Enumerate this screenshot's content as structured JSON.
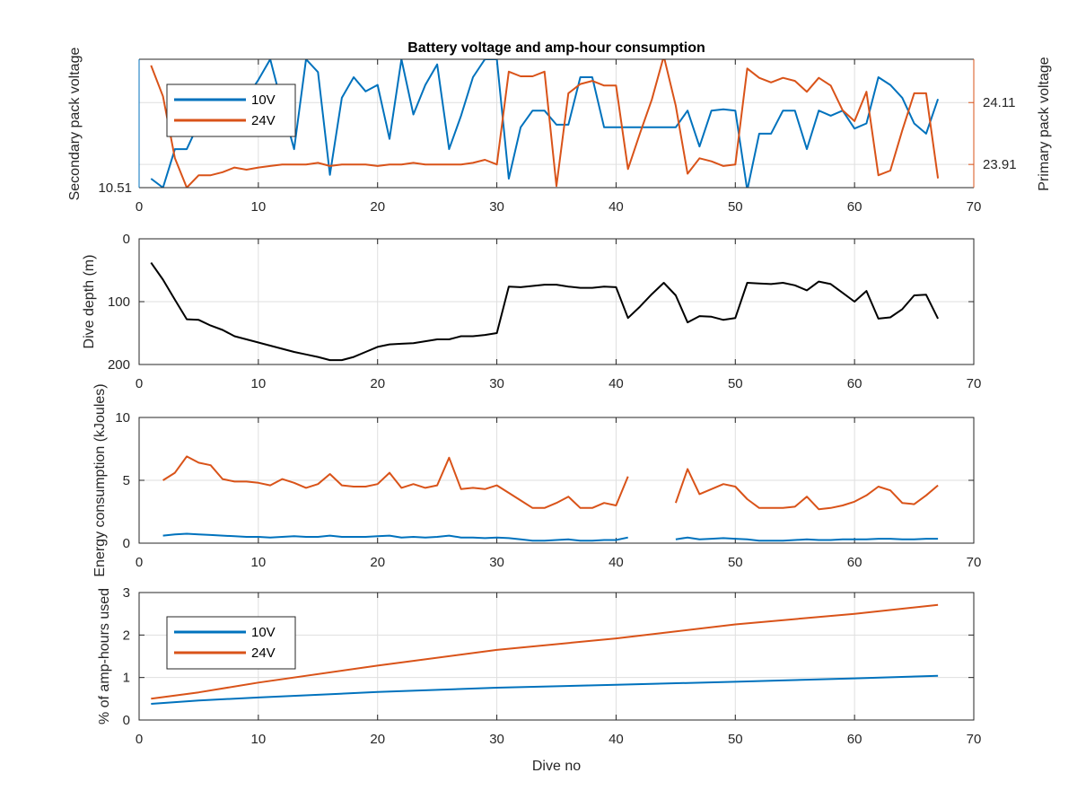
{
  "chart_data": [
    {
      "type": "line",
      "title": "Battery voltage and amp-hour consumption",
      "xlim": [
        0,
        70
      ],
      "xticks": [
        0,
        10,
        20,
        30,
        40,
        50,
        60,
        70
      ],
      "y_left": {
        "label": "Secondary pack voltage",
        "color": "#0072BD",
        "ticks": [
          10.51
        ],
        "tick_labels": [
          "10.51"
        ],
        "lim": [
          10.51,
          10.56
        ]
      },
      "y_right": {
        "label": "Primary pack voltage",
        "color": "#D95319",
        "ticks": [
          23.91,
          24.11
        ],
        "tick_labels": [
          "23.91",
          "24.11"
        ],
        "lim": [
          23.835,
          24.25
        ]
      },
      "legend": {
        "placement": "top-left",
        "entries": [
          "10V",
          "24V"
        ]
      },
      "series": [
        {
          "name": "10V",
          "axis": "left",
          "color": "#0072BD",
          "x": [
            1,
            2,
            3,
            4,
            5,
            6,
            7,
            8,
            9,
            10,
            11,
            12,
            13,
            14,
            15,
            16,
            17,
            18,
            19,
            20,
            21,
            22,
            23,
            24,
            25,
            26,
            27,
            28,
            29,
            30,
            31,
            32,
            33,
            34,
            35,
            36,
            37,
            38,
            39,
            40,
            41,
            42,
            43,
            44,
            45,
            46,
            47,
            48,
            49,
            50,
            51,
            52,
            53,
            54,
            55,
            56,
            57,
            58,
            59,
            60,
            61,
            62,
            63,
            64,
            65,
            66,
            67
          ],
          "y": [
            10.5135,
            10.51,
            10.525,
            10.525,
            10.535,
            10.548,
            10.545,
            10.5425,
            10.545,
            10.552,
            10.56,
            10.542,
            10.525,
            10.56,
            10.555,
            10.515,
            10.545,
            10.553,
            10.5475,
            10.55,
            10.529,
            10.56,
            10.5385,
            10.55,
            10.558,
            10.525,
            10.538,
            10.553,
            10.56,
            10.56,
            10.5135,
            10.5335,
            10.54,
            10.54,
            10.5345,
            10.5345,
            10.553,
            10.553,
            10.5335,
            10.5335,
            10.5335,
            10.5335,
            10.5335,
            10.5335,
            10.5335,
            10.54,
            10.526,
            10.54,
            10.5405,
            10.54,
            10.509,
            10.531,
            10.531,
            10.54,
            10.54,
            10.525,
            10.54,
            10.538,
            10.54,
            10.533,
            10.535,
            10.553,
            10.55,
            10.545,
            10.535,
            10.531,
            10.5445
          ]
        },
        {
          "name": "24V",
          "axis": "right",
          "color": "#D95319",
          "x": [
            1,
            2,
            3,
            4,
            5,
            6,
            7,
            8,
            9,
            10,
            11,
            12,
            13,
            14,
            15,
            16,
            17,
            18,
            19,
            20,
            21,
            22,
            23,
            24,
            25,
            26,
            27,
            28,
            29,
            30,
            31,
            32,
            33,
            34,
            35,
            36,
            37,
            38,
            39,
            40,
            41,
            42,
            43,
            44,
            45,
            46,
            47,
            48,
            49,
            50,
            51,
            52,
            53,
            54,
            55,
            56,
            57,
            58,
            59,
            60,
            61,
            62,
            63,
            64,
            65,
            66,
            67
          ],
          "y": [
            24.23,
            24.13,
            23.93,
            23.835,
            23.875,
            23.875,
            23.885,
            23.9,
            23.893,
            23.9,
            23.905,
            23.91,
            23.91,
            23.91,
            23.915,
            23.905,
            23.91,
            23.91,
            23.91,
            23.905,
            23.91,
            23.91,
            23.915,
            23.91,
            23.91,
            23.91,
            23.91,
            23.915,
            23.925,
            23.91,
            24.21,
            24.195,
            24.195,
            24.21,
            23.84,
            24.14,
            24.17,
            24.18,
            24.165,
            24.165,
            23.895,
            24.01,
            24.12,
            24.26,
            24.1,
            23.88,
            23.93,
            23.92,
            23.905,
            23.91,
            24.22,
            24.19,
            24.175,
            24.19,
            24.18,
            24.145,
            24.19,
            24.165,
            24.085,
            24.05,
            24.145,
            23.875,
            23.89,
            24.02,
            24.14,
            24.14,
            23.865
          ]
        }
      ]
    },
    {
      "type": "line",
      "title": "",
      "xlim": [
        0,
        70
      ],
      "xticks": [
        0,
        10,
        20,
        30,
        40,
        50,
        60,
        70
      ],
      "ylabel": "Dive depth (m)",
      "ylim": [
        0,
        200
      ],
      "y_reversed": true,
      "yticks": [
        0,
        100,
        200
      ],
      "series": [
        {
          "color": "#000000",
          "x": [
            1,
            2,
            3,
            4,
            5,
            6,
            7,
            8,
            9,
            10,
            11,
            12,
            13,
            14,
            15,
            16,
            17,
            18,
            19,
            20,
            21,
            22,
            23,
            24,
            25,
            26,
            27,
            28,
            29,
            30,
            31,
            32,
            33,
            34,
            35,
            36,
            37,
            38,
            39,
            40,
            41,
            42,
            43,
            44,
            45,
            46,
            47,
            48,
            49,
            50,
            51,
            52,
            53,
            54,
            55,
            56,
            57,
            58,
            59,
            60,
            61,
            62,
            63,
            64,
            65,
            66,
            67
          ],
          "y": [
            38,
            65,
            97,
            128,
            129,
            138,
            145,
            155,
            160,
            165,
            170,
            175,
            180,
            184,
            188,
            193,
            193,
            188,
            180,
            172,
            168,
            167,
            166,
            163,
            160,
            160,
            155,
            155,
            153,
            150,
            76,
            77,
            75,
            73,
            73,
            76,
            78,
            78,
            76,
            77,
            126,
            108,
            88,
            70,
            90,
            133,
            123,
            124,
            129,
            126,
            70,
            71,
            72,
            70,
            74,
            82,
            68,
            72,
            86,
            100,
            83,
            127,
            125,
            112,
            90,
            89,
            127
          ]
        }
      ]
    },
    {
      "type": "line",
      "title": "",
      "xlim": [
        0,
        70
      ],
      "xticks": [
        0,
        10,
        20,
        30,
        40,
        50,
        60,
        70
      ],
      "ylabel": "Energy consumption (kJoules)",
      "ylim": [
        0,
        10
      ],
      "yticks": [
        0,
        5,
        10
      ],
      "series": [
        {
          "color": "#D95319",
          "x": [
            2,
            3,
            4,
            5,
            6,
            7,
            8,
            9,
            10,
            11,
            12,
            13,
            14,
            15,
            16,
            17,
            18,
            19,
            20,
            21,
            22,
            23,
            24,
            25,
            26,
            27,
            28,
            29,
            30,
            31,
            32,
            33,
            34,
            35,
            36,
            37,
            38,
            39,
            40,
            41,
            null,
            45,
            46,
            47,
            48,
            49,
            50,
            51,
            52,
            53,
            54,
            55,
            56,
            57,
            58,
            59,
            60,
            61,
            62,
            63,
            64,
            65,
            66,
            67
          ],
          "y": [
            5.0,
            5.6,
            6.9,
            6.4,
            6.2,
            5.1,
            4.9,
            4.9,
            4.8,
            4.6,
            5.1,
            4.8,
            4.4,
            4.7,
            5.5,
            4.6,
            4.5,
            4.5,
            4.7,
            5.6,
            4.4,
            4.7,
            4.4,
            4.6,
            6.8,
            4.3,
            4.4,
            4.3,
            4.6,
            4.0,
            3.4,
            2.8,
            2.8,
            3.2,
            3.7,
            2.8,
            2.8,
            3.2,
            3.0,
            5.3,
            null,
            3.2,
            5.9,
            3.9,
            4.3,
            4.7,
            4.5,
            3.5,
            2.8,
            2.8,
            2.8,
            2.9,
            3.7,
            2.7,
            2.8,
            3.0,
            3.3,
            3.8,
            4.5,
            4.2,
            3.2,
            3.1,
            3.8,
            4.6
          ]
        },
        {
          "color": "#0072BD",
          "x": [
            2,
            3,
            4,
            5,
            6,
            7,
            8,
            9,
            10,
            11,
            12,
            13,
            14,
            15,
            16,
            17,
            18,
            19,
            20,
            21,
            22,
            23,
            24,
            25,
            26,
            27,
            28,
            29,
            30,
            31,
            32,
            33,
            34,
            35,
            36,
            37,
            38,
            39,
            40,
            41,
            null,
            45,
            46,
            47,
            48,
            49,
            50,
            51,
            52,
            53,
            54,
            55,
            56,
            57,
            58,
            59,
            60,
            61,
            62,
            63,
            64,
            65,
            66,
            67
          ],
          "y": [
            0.6,
            0.7,
            0.75,
            0.7,
            0.65,
            0.6,
            0.55,
            0.5,
            0.5,
            0.45,
            0.5,
            0.55,
            0.5,
            0.5,
            0.6,
            0.5,
            0.5,
            0.5,
            0.55,
            0.6,
            0.45,
            0.5,
            0.45,
            0.5,
            0.6,
            0.45,
            0.45,
            0.4,
            0.45,
            0.4,
            0.3,
            0.2,
            0.2,
            0.25,
            0.3,
            0.2,
            0.2,
            0.25,
            0.25,
            0.45,
            null,
            0.3,
            0.45,
            0.3,
            0.35,
            0.4,
            0.35,
            0.3,
            0.2,
            0.2,
            0.2,
            0.25,
            0.3,
            0.25,
            0.25,
            0.3,
            0.3,
            0.3,
            0.35,
            0.35,
            0.3,
            0.3,
            0.35,
            0.35
          ]
        }
      ]
    },
    {
      "type": "line",
      "title": "",
      "xlim": [
        0,
        70
      ],
      "xticks": [
        0,
        10,
        20,
        30,
        40,
        50,
        60,
        70
      ],
      "xlabel": "Dive no",
      "ylabel": "% of amp-hours used",
      "ylim": [
        0,
        3
      ],
      "yticks": [
        0,
        1,
        2,
        3
      ],
      "legend": {
        "placement": "top-left",
        "entries": [
          "10V",
          "24V"
        ]
      },
      "series": [
        {
          "name": "10V",
          "color": "#0072BD",
          "x": [
            1,
            5,
            10,
            20,
            30,
            40,
            50,
            60,
            67
          ],
          "y": [
            0.38,
            0.46,
            0.53,
            0.66,
            0.76,
            0.83,
            0.9,
            0.98,
            1.04
          ]
        },
        {
          "name": "24V",
          "color": "#D95319",
          "x": [
            1,
            5,
            10,
            20,
            30,
            40,
            50,
            60,
            67
          ],
          "y": [
            0.5,
            0.65,
            0.88,
            1.28,
            1.65,
            1.92,
            2.25,
            2.5,
            2.71
          ]
        }
      ]
    }
  ]
}
